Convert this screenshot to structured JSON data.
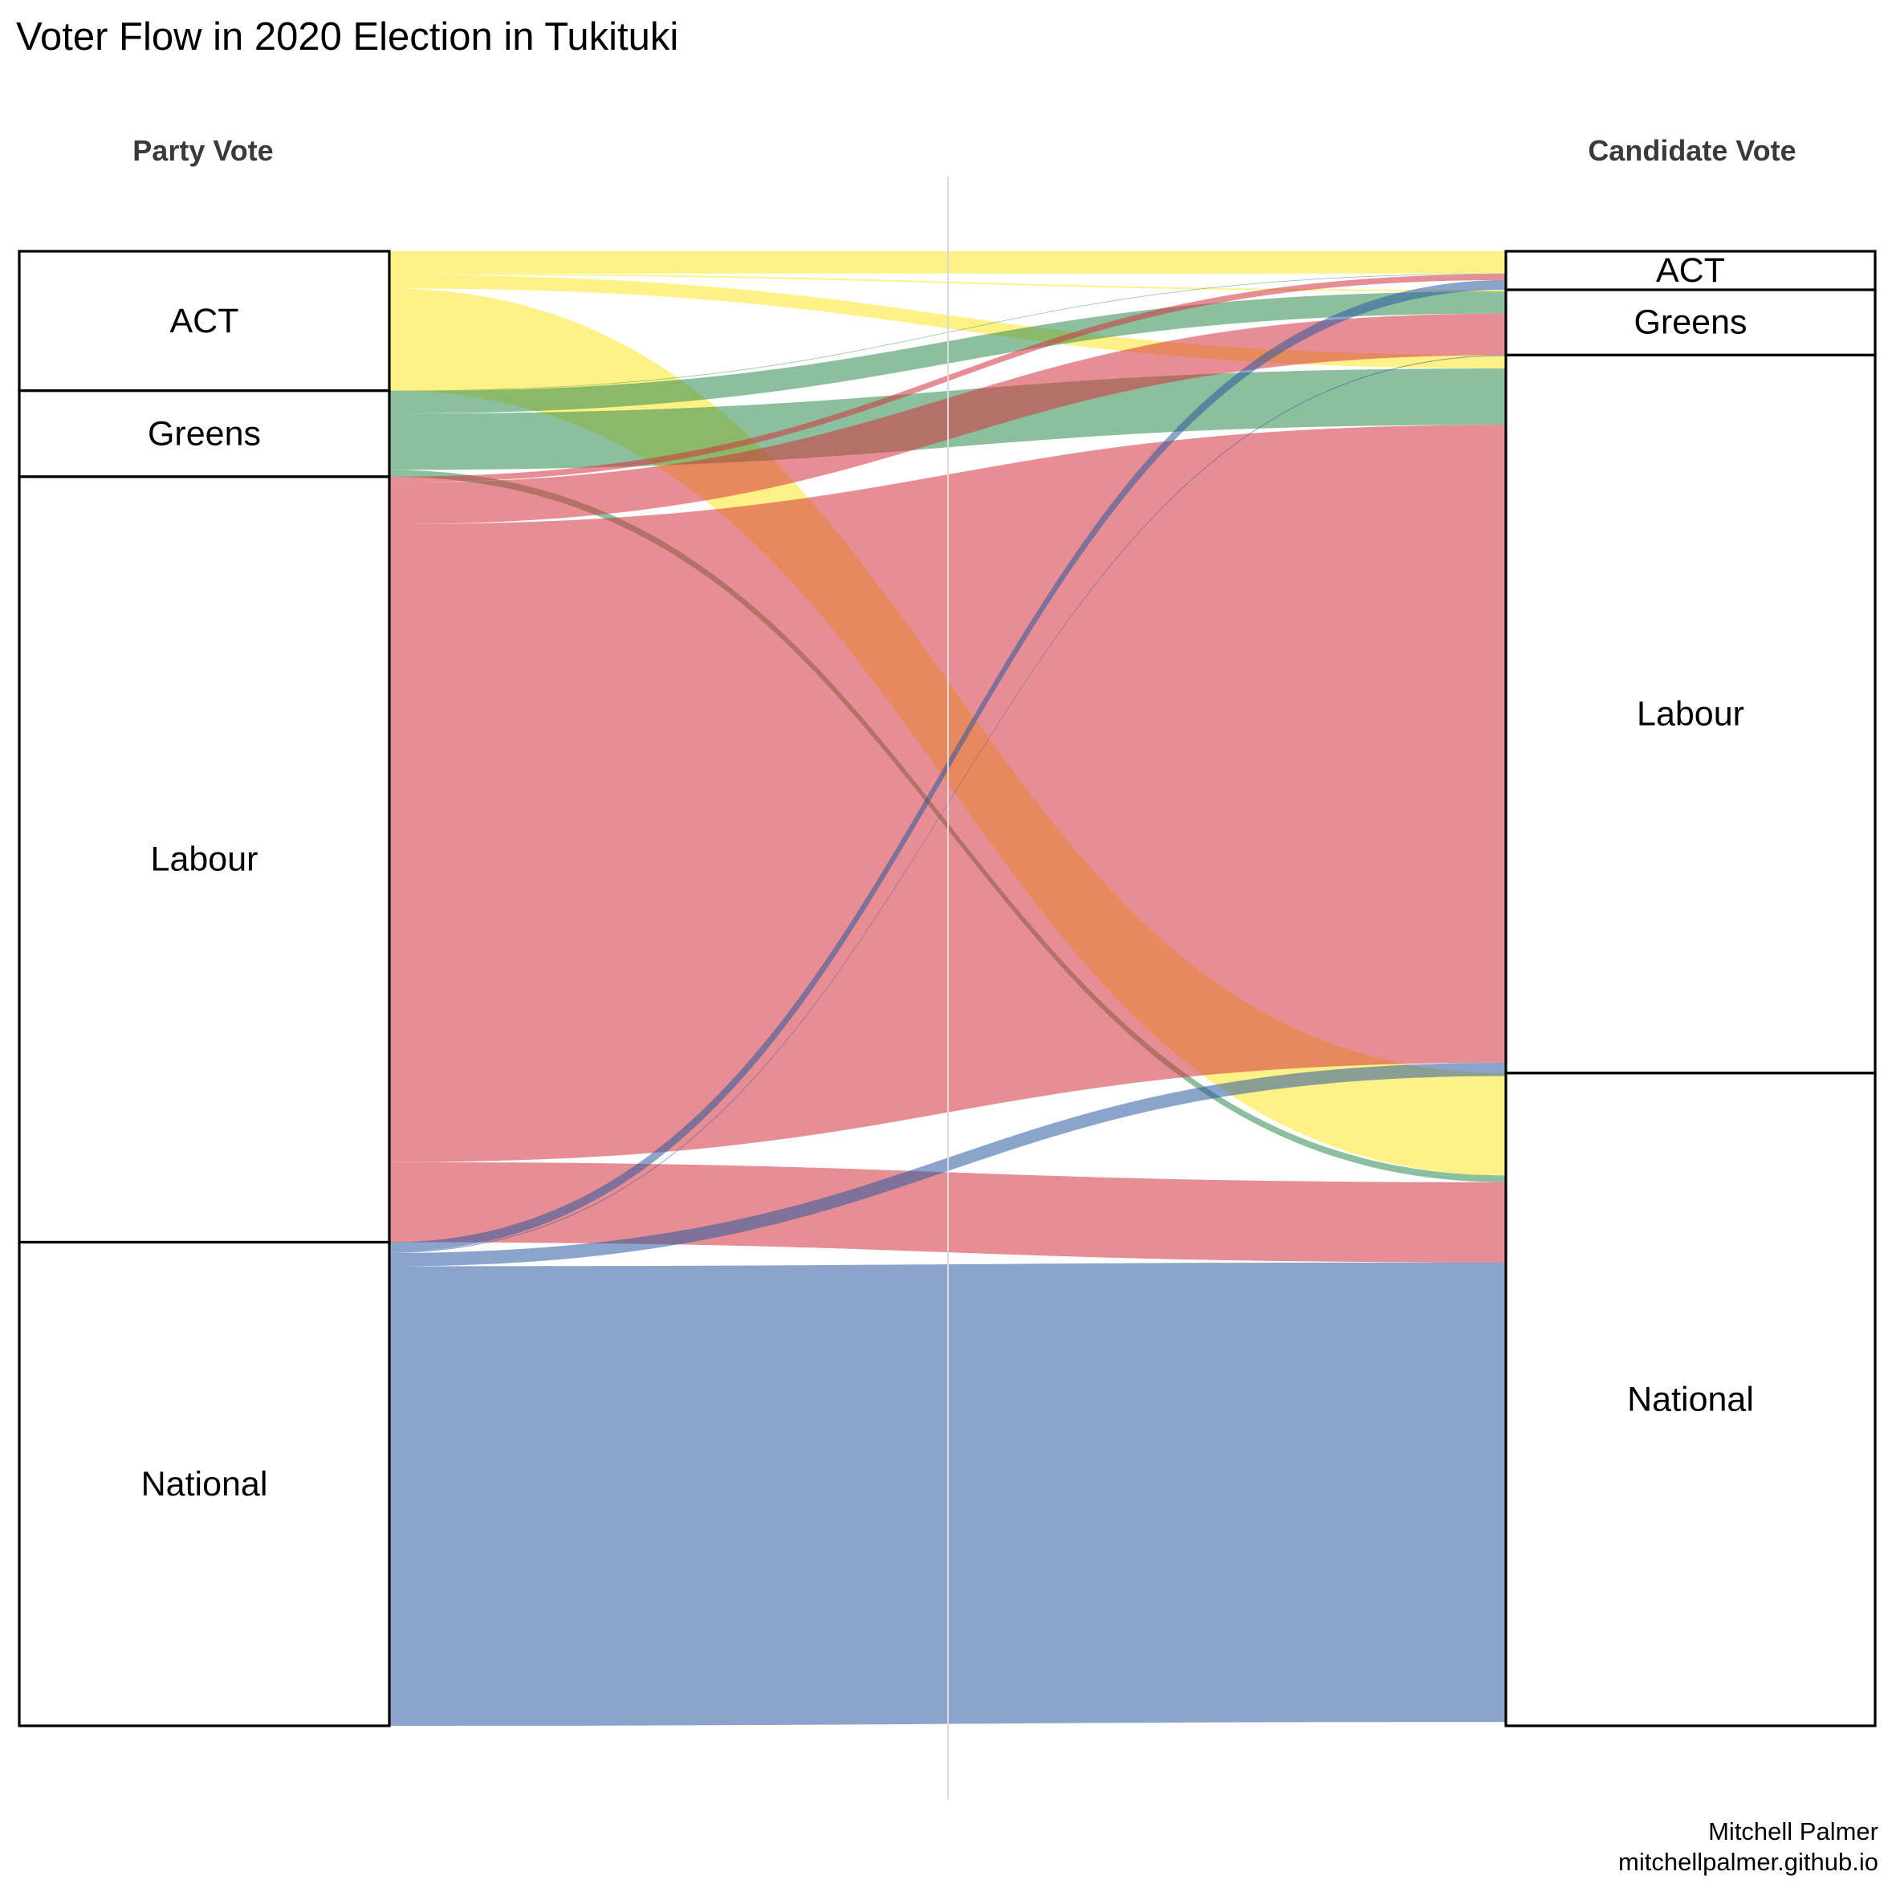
{
  "title": "Voter Flow in 2020 Election in Tukituki",
  "columns": {
    "left": "Party Vote",
    "right": "Candidate Vote"
  },
  "caption": {
    "author": "Mitchell Palmer",
    "site": "mitchellpalmer.github.io"
  },
  "colors": {
    "ACT": "#fde725",
    "Greens": "#2e8b4f",
    "Labour": "#d3323c",
    "National": "#2b5aa0"
  },
  "chart_data": {
    "type": "sankey",
    "left_nodes": [
      {
        "name": "ACT",
        "value": 4.7
      },
      {
        "name": "Greens",
        "value": 2.9
      },
      {
        "name": "Labour",
        "value": 25.8
      },
      {
        "name": "National",
        "value": 16.3
      }
    ],
    "right_nodes": [
      {
        "name": "ACT",
        "value": 1.3
      },
      {
        "name": "Greens",
        "value": 2.2
      },
      {
        "name": "Labour",
        "value": 24.2
      },
      {
        "name": "National",
        "value": 22.0
      }
    ],
    "flows": [
      {
        "from": "ACT",
        "to": "ACT",
        "value": 0.75
      },
      {
        "from": "ACT",
        "to": "Greens",
        "value": 0.05
      },
      {
        "from": "ACT",
        "to": "Labour",
        "value": 0.45
      },
      {
        "from": "ACT",
        "to": "National",
        "value": 3.45
      },
      {
        "from": "Greens",
        "to": "ACT",
        "value": 0.02
      },
      {
        "from": "Greens",
        "to": "Greens",
        "value": 0.75
      },
      {
        "from": "Greens",
        "to": "Labour",
        "value": 1.9
      },
      {
        "from": "Greens",
        "to": "National",
        "value": 0.23
      },
      {
        "from": "Labour",
        "to": "ACT",
        "value": 0.2
      },
      {
        "from": "Labour",
        "to": "Greens",
        "value": 1.4
      },
      {
        "from": "Labour",
        "to": "Labour",
        "value": 21.5
      },
      {
        "from": "Labour",
        "to": "National",
        "value": 2.7
      },
      {
        "from": "National",
        "to": "ACT",
        "value": 0.33
      },
      {
        "from": "National",
        "to": "Greens",
        "value": 0.03
      },
      {
        "from": "National",
        "to": "Labour",
        "value": 0.45
      },
      {
        "from": "National",
        "to": "National",
        "value": 15.49
      }
    ]
  }
}
